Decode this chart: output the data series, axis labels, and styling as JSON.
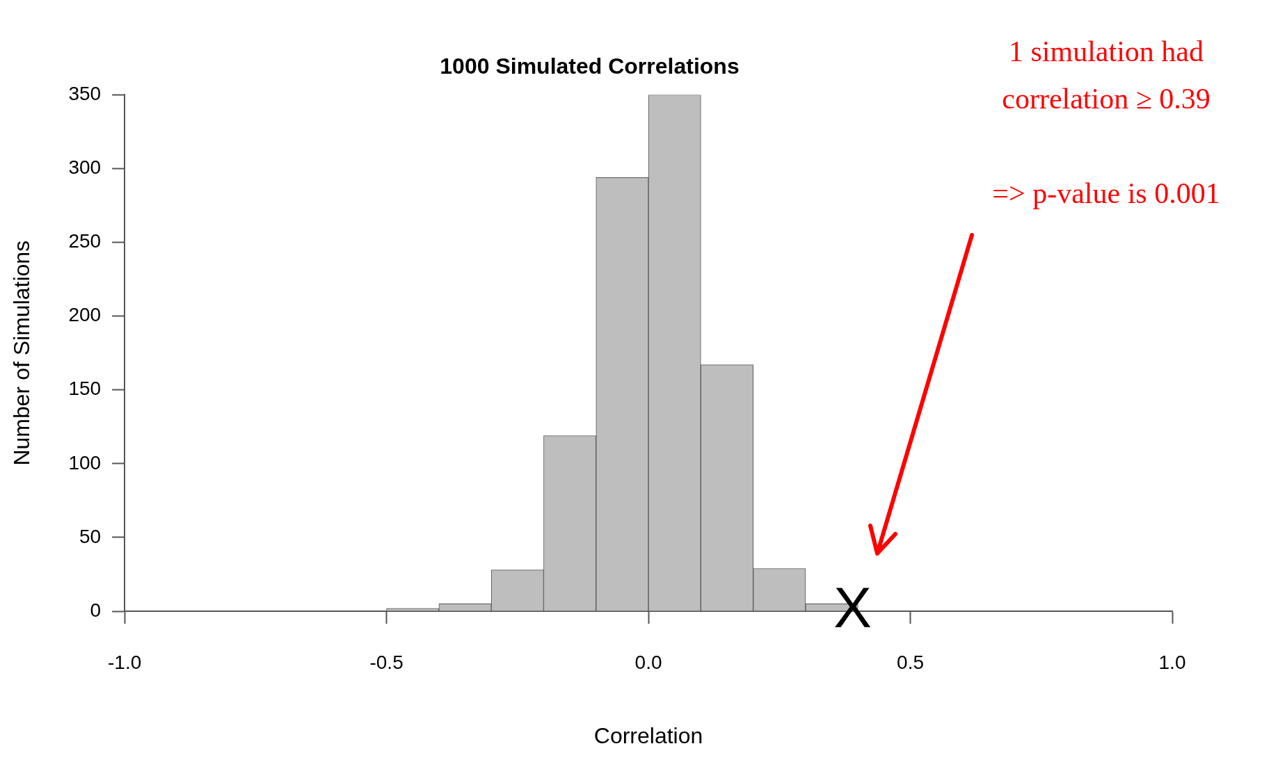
{
  "chart_data": {
    "type": "histogram",
    "title": "1000 Simulated Correlations",
    "xlabel": "Correlation",
    "ylabel": "Number of Simulations",
    "bins": [
      -0.5,
      -0.4,
      -0.3,
      -0.2,
      -0.1,
      0.0,
      0.1,
      0.2,
      0.3,
      0.4
    ],
    "values": [
      2,
      5,
      28,
      119,
      294,
      350,
      167,
      29,
      5
    ],
    "color": "#bebebe",
    "xlim": [
      -1.0,
      1.0
    ],
    "xticks": [
      {
        "value": -1,
        "label": "-1.0"
      },
      {
        "value": -0.5,
        "label": "-0.5"
      },
      {
        "value": 0,
        "label": "0.0"
      },
      {
        "value": 0.5,
        "label": "0.5"
      },
      {
        "value": 1,
        "label": "1.0"
      }
    ],
    "ylim": [
      0,
      350
    ],
    "yticks": [
      0,
      50,
      100,
      150,
      200,
      250,
      300,
      350
    ],
    "grid": false,
    "legend": false,
    "annotations": [
      "1 simulation had correlation ≥ 0.39",
      "=> p-value is 0.001",
      {
        "text": "X",
        "x": 0.39,
        "y": 0
      }
    ]
  }
}
